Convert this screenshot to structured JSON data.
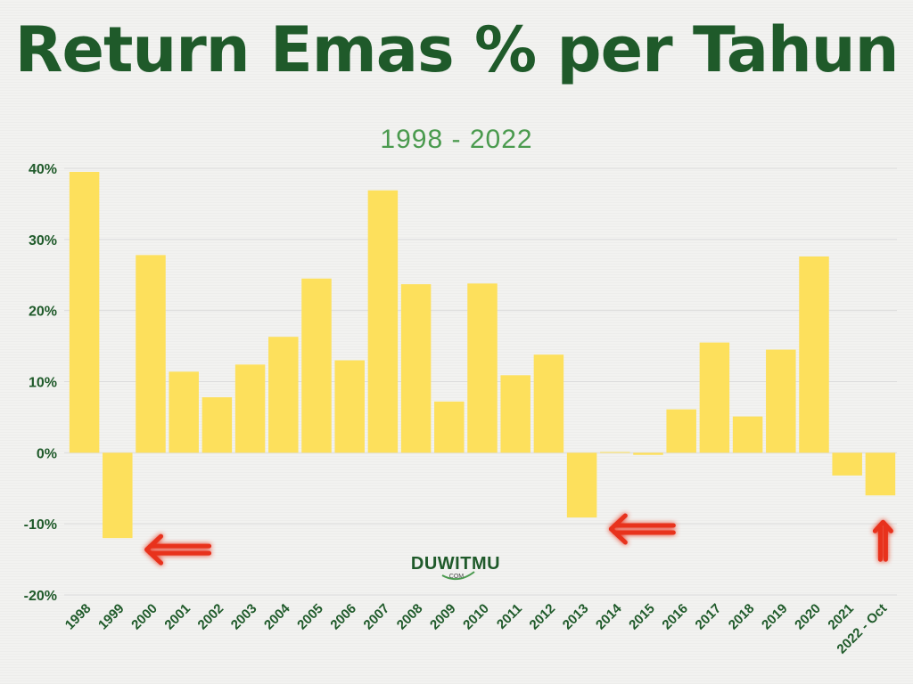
{
  "colors": {
    "title": "#1f5a2a",
    "subtitle": "#4a9a4e",
    "bar": "#fde05c",
    "axis_text": "#1f5a2a",
    "grid": "#dcdcdc",
    "arrow": "#e8301c"
  },
  "logo": {
    "text": "DUWITMU",
    "sub": ".COM"
  },
  "chart_data": {
    "type": "bar",
    "title": "Return Emas % per Tahun",
    "subtitle": "1998 - 2022",
    "xlabel": "",
    "ylabel": "",
    "ylim": [
      -20,
      40
    ],
    "yticks": [
      -20,
      -10,
      0,
      10,
      20,
      30,
      40
    ],
    "ytick_labels": [
      "-20%",
      "-10%",
      "0%",
      "10%",
      "20%",
      "30%",
      "40%"
    ],
    "grid": true,
    "categories": [
      "1998",
      "1999",
      "2000",
      "2001",
      "2002",
      "2003",
      "2004",
      "2005",
      "2006",
      "2007",
      "2008",
      "2009",
      "2010",
      "2011",
      "2012",
      "2013",
      "2014",
      "2015",
      "2016",
      "2017",
      "2018",
      "2019",
      "2020",
      "2021",
      "2022 - Oct"
    ],
    "values": [
      39.5,
      -12.0,
      27.8,
      11.4,
      7.8,
      12.4,
      16.3,
      24.5,
      13.0,
      36.9,
      23.7,
      7.2,
      23.8,
      10.9,
      13.8,
      -9.1,
      0.1,
      -0.3,
      6.1,
      15.5,
      5.1,
      14.5,
      27.6,
      -3.2,
      -6.0
    ],
    "annotations": [
      {
        "type": "arrow",
        "direction": "left",
        "category": "1999"
      },
      {
        "type": "arrow",
        "direction": "left",
        "category": "2013"
      },
      {
        "type": "arrow",
        "direction": "up",
        "category": "2022 - Oct"
      }
    ]
  }
}
